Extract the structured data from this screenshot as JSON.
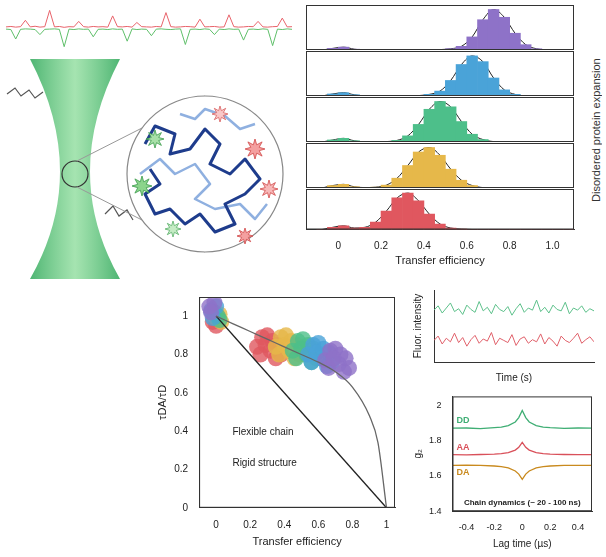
{
  "chart_data": [
    {
      "type": "line",
      "tick_labels": false,
      "grid": false,
      "x": [
        0,
        1,
        2,
        3,
        4,
        5,
        6,
        7,
        8,
        9,
        10,
        11,
        12,
        13,
        14,
        15,
        16,
        17,
        18,
        19,
        20,
        21,
        22,
        23,
        24,
        25,
        26,
        27,
        28,
        29,
        30,
        31,
        32,
        33,
        34,
        35,
        36,
        37,
        38,
        39,
        40,
        41,
        42,
        43,
        44,
        45,
        46,
        47,
        48,
        49,
        50,
        51,
        52,
        53,
        54,
        55,
        56,
        57,
        58,
        59
      ],
      "xlim": [
        0,
        59
      ],
      "ylim": [
        -1,
        1
      ],
      "series": [
        {
          "color": "#e8626a",
          "values": [
            0.05,
            0.07,
            0.04,
            0.06,
            0.35,
            0.05,
            0.08,
            0.04,
            0.06,
            0.8,
            0.05,
            0.07,
            0.03,
            0.06,
            0.05,
            0.3,
            0.06,
            0.04,
            0.07,
            0.05,
            0.06,
            0.04,
            0.55,
            0.06,
            0.05,
            0.07,
            0.04,
            0.25,
            0.06,
            0.05,
            0.04,
            0.07,
            0.05,
            0.7,
            0.06,
            0.04,
            0.05,
            0.07,
            0.06,
            0.04,
            0.4,
            0.05,
            0.06,
            0.07,
            0.04,
            0.05,
            0.6,
            0.06,
            0.04,
            0.05,
            0.07,
            0.06,
            0.3,
            0.05,
            0.04,
            0.06,
            0.07,
            0.45,
            0.05,
            0.06
          ]
        },
        {
          "color": "#5fbf6a",
          "values": [
            -0.05,
            -0.07,
            -0.5,
            -0.06,
            -0.04,
            -0.05,
            -0.07,
            -0.3,
            -0.06,
            -0.05,
            -0.04,
            -0.06,
            -0.85,
            -0.05,
            -0.07,
            -0.04,
            -0.06,
            -0.05,
            -0.4,
            -0.06,
            -0.05,
            -0.07,
            -0.04,
            -0.06,
            -0.05,
            -0.6,
            -0.04,
            -0.07,
            -0.05,
            -0.06,
            -0.35,
            -0.05,
            -0.04,
            -0.06,
            -0.07,
            -0.05,
            -0.04,
            -0.75,
            -0.06,
            -0.05,
            -0.07,
            -0.04,
            -0.06,
            -0.3,
            -0.05,
            -0.07,
            -0.04,
            -0.06,
            -0.05,
            -0.55,
            -0.06,
            -0.05,
            -0.07,
            -0.04,
            -0.06,
            -0.8,
            -0.05,
            -0.07,
            -0.04,
            -0.06
          ]
        }
      ]
    },
    {
      "type": "histogram",
      "x_label": "Transfer efficiency",
      "annotation": "Disordered protein expansion",
      "tick_labels": "x",
      "grid": false,
      "bins": [
        -0.1,
        -0.05,
        0,
        0.05,
        0.1,
        0.15,
        0.2,
        0.25,
        0.3,
        0.35,
        0.4,
        0.45,
        0.5,
        0.55,
        0.6,
        0.65,
        0.7,
        0.75,
        0.8,
        0.85,
        0.9,
        0.95,
        1,
        1.05,
        1.1
      ],
      "xlim": [
        -0.15,
        1.1
      ],
      "xticks": [
        0,
        0.2,
        0.4,
        0.6,
        0.8,
        {
          "value": 1,
          "label": "1.0"
        }
      ],
      "ylim": [
        0,
        1.1
      ],
      "series": [
        {
          "color": "#8e72c8",
          "values": [
            0,
            0.04,
            0.07,
            0.02,
            0,
            0,
            0,
            0,
            0,
            0,
            0,
            0.01,
            0.03,
            0.09,
            0.32,
            0.74,
            0.99,
            0.8,
            0.41,
            0.13,
            0.03,
            0,
            0,
            0
          ]
        },
        {
          "color": "#4aa3d8",
          "values": [
            0,
            0.05,
            0.08,
            0.03,
            0,
            0,
            0,
            0,
            0,
            0.01,
            0.04,
            0.12,
            0.38,
            0.77,
            0.98,
            0.84,
            0.44,
            0.15,
            0.04,
            0,
            0,
            0,
            0,
            0
          ]
        },
        {
          "color": "#4dbf8a",
          "values": [
            0,
            0.05,
            0.09,
            0.03,
            0,
            0,
            0.01,
            0.04,
            0.15,
            0.43,
            0.8,
            0.99,
            0.86,
            0.5,
            0.19,
            0.06,
            0.01,
            0,
            0,
            0,
            0,
            0,
            0,
            0
          ]
        },
        {
          "color": "#e6b84a",
          "values": [
            0,
            0.06,
            0.09,
            0.03,
            0.01,
            0.02,
            0.07,
            0.24,
            0.55,
            0.88,
            0.99,
            0.8,
            0.46,
            0.19,
            0.06,
            0.01,
            0,
            0,
            0,
            0,
            0,
            0,
            0,
            0
          ]
        },
        {
          "color": "#e0575f",
          "values": [
            0,
            0.06,
            0.1,
            0.04,
            0.06,
            0.2,
            0.5,
            0.86,
            0.99,
            0.78,
            0.42,
            0.15,
            0.04,
            0.01,
            0,
            0,
            0,
            0,
            0,
            0,
            0,
            0,
            0,
            0
          ]
        }
      ]
    },
    {
      "type": "scatter",
      "x_label": "Transfer efficiency",
      "y_label": "τDA/τD",
      "grid": false,
      "xlim": [
        -0.1,
        1.05
      ],
      "xticks": [
        0,
        0.2,
        0.4,
        0.6,
        0.8,
        1
      ],
      "ylim": [
        0,
        1.1
      ],
      "yticks": [
        0,
        0.2,
        0.4,
        0.6,
        0.8,
        1
      ],
      "series": [
        {
          "color": "#8e72c8",
          "x": [
            0.64,
            0.67,
            0.7,
            0.73,
            0.76,
            0.66,
            0.72,
            0.78,
            0.69,
            0.75,
            -0.04,
            -0.01,
            -0.03
          ],
          "y": [
            0.77,
            0.82,
            0.83,
            0.8,
            0.78,
            0.73,
            0.75,
            0.73,
            0.78,
            0.71,
            1.05,
            1.07,
            1.02
          ]
        },
        {
          "color": "#4aa3d8",
          "x": [
            0.54,
            0.57,
            0.6,
            0.63,
            0.66,
            0.56,
            0.62,
            0.68,
            0.59,
            0.65,
            -0.03,
            0,
            -0.02
          ],
          "y": [
            0.8,
            0.85,
            0.86,
            0.83,
            0.81,
            0.76,
            0.78,
            0.76,
            0.81,
            0.74,
            1.03,
            1.05,
            0.99
          ]
        },
        {
          "color": "#4dbf8a",
          "x": [
            0.45,
            0.48,
            0.51,
            0.54,
            0.57,
            0.47,
            0.53,
            0.59,
            0.5,
            0.56,
            -0.01,
            0.02,
            0.01
          ],
          "y": [
            0.82,
            0.87,
            0.88,
            0.85,
            0.83,
            0.78,
            0.8,
            0.78,
            0.83,
            0.76,
            1.02,
            0.98,
            1
          ]
        },
        {
          "color": "#e6b84a",
          "x": [
            0.35,
            0.38,
            0.41,
            0.44,
            0.47,
            0.37,
            0.43,
            0.49,
            0.4,
            0.46,
            0,
            0.03,
            0.02
          ],
          "y": [
            0.84,
            0.89,
            0.9,
            0.87,
            0.85,
            0.8,
            0.82,
            0.8,
            0.85,
            0.78,
            0.99,
            0.97,
            1.01
          ]
        },
        {
          "color": "#e0575f",
          "x": [
            0.24,
            0.27,
            0.3,
            0.33,
            0.36,
            0.26,
            0.32,
            0.38,
            0.29,
            0.35,
            -0.02,
            0.01,
            0
          ],
          "y": [
            0.84,
            0.89,
            0.9,
            0.87,
            0.85,
            0.8,
            0.82,
            0.8,
            0.85,
            0.78,
            0.97,
            1,
            0.95
          ]
        },
        {
          "name": "Flexible chain",
          "type": "line",
          "color": "#666666",
          "line_style": "solid",
          "x": [
            0,
            0.1,
            0.2,
            0.3,
            0.4,
            0.5,
            0.6,
            0.7,
            0.8,
            0.9,
            0.95,
            1
          ],
          "y": [
            1,
            0.96,
            0.92,
            0.88,
            0.84,
            0.8,
            0.76,
            0.71,
            0.63,
            0.48,
            0.34,
            0
          ]
        },
        {
          "name": "Rigid structure",
          "type": "line",
          "color": "#222222",
          "line_style": "solid",
          "x": [
            0,
            1
          ],
          "y": [
            1,
            0
          ]
        }
      ]
    },
    {
      "type": "line",
      "x_label": "Time (s)",
      "y_label": "Fluor. intensity",
      "tick_labels": false,
      "grid": false,
      "x": [
        0,
        1,
        2,
        3,
        4,
        5,
        6,
        7,
        8,
        9,
        10,
        11,
        12,
        13,
        14,
        15,
        16,
        17,
        18,
        19,
        20,
        21,
        22,
        23,
        24,
        25,
        26,
        27,
        28,
        29,
        30,
        31,
        32,
        33,
        34,
        35,
        36,
        37,
        38,
        39
      ],
      "xlim": [
        0,
        39
      ],
      "ylim": [
        0,
        1
      ],
      "series": [
        {
          "color": "#5cc08a",
          "values": [
            0.72,
            0.78,
            0.68,
            0.75,
            0.82,
            0.7,
            0.74,
            0.66,
            0.79,
            0.73,
            0.69,
            0.84,
            0.71,
            0.76,
            0.67,
            0.8,
            0.73,
            0.7,
            0.77,
            0.65,
            0.74,
            0.81,
            0.69,
            0.75,
            0.72,
            0.86,
            0.7,
            0.76,
            0.68,
            0.79,
            0.73,
            0.71,
            0.83,
            0.67,
            0.75,
            0.72,
            0.78,
            0.69,
            0.74,
            0.71
          ]
        },
        {
          "color": "#e0606a",
          "values": [
            0.3,
            0.36,
            0.25,
            0.33,
            0.28,
            0.4,
            0.27,
            0.34,
            0.22,
            0.31,
            0.37,
            0.26,
            0.32,
            0.29,
            0.41,
            0.24,
            0.33,
            0.3,
            0.27,
            0.38,
            0.23,
            0.32,
            0.35,
            0.26,
            0.31,
            0.28,
            0.39,
            0.25,
            0.34,
            0.29,
            0.22,
            0.36,
            0.3,
            0.27,
            0.33,
            0.4,
            0.26,
            0.31,
            0.35,
            0.28
          ]
        }
      ]
    },
    {
      "type": "line",
      "x_label": "Lag time (µs)",
      "y_label": "g₂",
      "annotation": "Chain dynamics (~ 20 - 100 ns)",
      "grid": false,
      "x": [
        -0.5,
        -0.4,
        -0.3,
        -0.2,
        -0.15,
        -0.1,
        -0.05,
        -0.025,
        0,
        0.025,
        0.05,
        0.1,
        0.15,
        0.2,
        0.3,
        0.4,
        0.5
      ],
      "xlim": [
        -0.5,
        0.5
      ],
      "xticks": [
        -0.4,
        -0.2,
        0,
        0.2,
        0.4
      ],
      "ylim": [
        1.4,
        2.05
      ],
      "yticks": [
        1.4,
        1.6,
        1.8,
        2
      ],
      "series": [
        {
          "name": "DD",
          "color": "#3fae74",
          "values": [
            1.87,
            1.871,
            1.868,
            1.873,
            1.876,
            1.885,
            1.905,
            1.93,
            1.97,
            1.93,
            1.905,
            1.885,
            1.876,
            1.873,
            1.869,
            1.871,
            1.87
          ]
        },
        {
          "name": "AA",
          "color": "#d9505a",
          "values": [
            1.72,
            1.719,
            1.721,
            1.723,
            1.726,
            1.732,
            1.746,
            1.762,
            1.79,
            1.762,
            1.746,
            1.732,
            1.726,
            1.723,
            1.721,
            1.72,
            1.72
          ]
        },
        {
          "name": "DA",
          "color": "#c98a1e",
          "values": [
            1.66,
            1.661,
            1.659,
            1.656,
            1.652,
            1.645,
            1.628,
            1.61,
            1.58,
            1.61,
            1.628,
            1.645,
            1.652,
            1.656,
            1.659,
            1.66,
            1.66
          ]
        }
      ]
    }
  ]
}
